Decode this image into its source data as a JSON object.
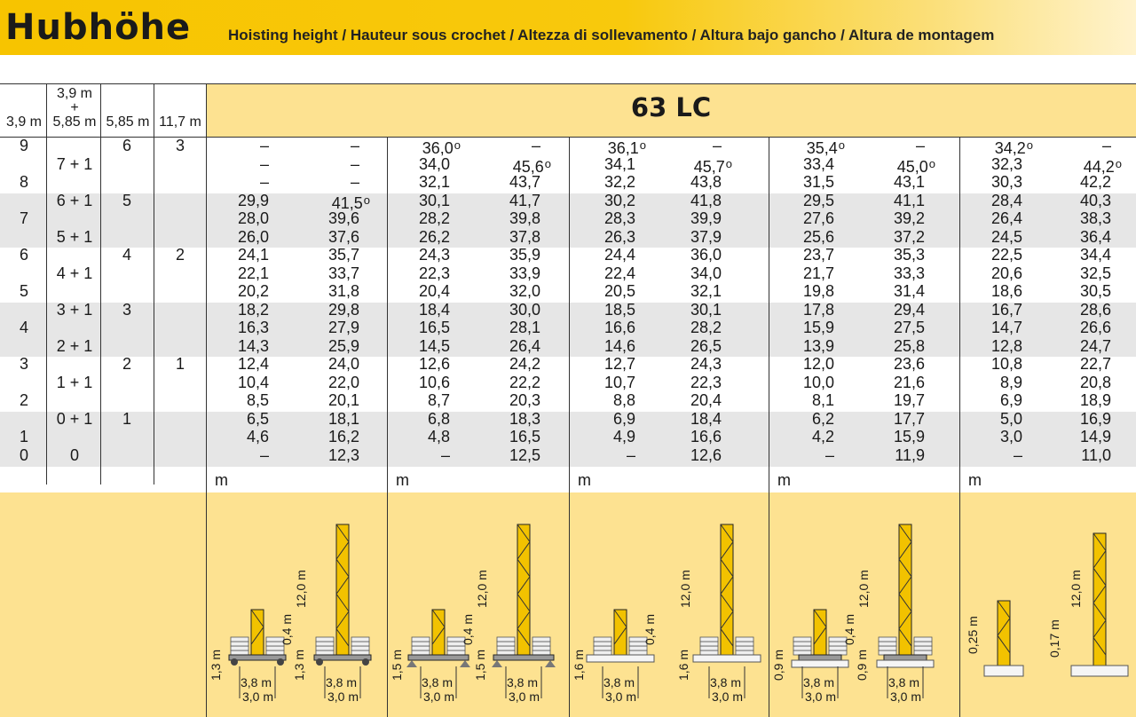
{
  "title": "Hubhöhe",
  "subtitle": "Hoisting height / Hauteur sous crochet / Altezza di sollevamento / Altura bajo gancho / Altura de montagem",
  "model": "63 LC",
  "mast_headers": {
    "h1": "3,9 m",
    "h2_top": "3,9 m",
    "h2_plus": "+",
    "h2_bottom": "5,85 m",
    "h3": "5,85 m",
    "h4": "11,7 m"
  },
  "mast_counts": {
    "col1": [
      "9",
      "",
      "8",
      "",
      "7",
      "",
      "6",
      "",
      "5",
      "",
      "4",
      "",
      "3",
      "",
      "2",
      "",
      "1",
      "0"
    ],
    "col2": [
      "",
      "7 + 1",
      "",
      "6 + 1",
      "",
      "5 + 1",
      "",
      "4 + 1",
      "",
      "3 + 1",
      "",
      "2 + 1",
      "",
      "1 + 1",
      "",
      "0 + 1",
      "",
      "0"
    ],
    "col3": [
      "6",
      "",
      "",
      "5",
      "",
      "",
      "4",
      "",
      "",
      "3",
      "",
      "",
      "2",
      "",
      "",
      "1",
      "",
      ""
    ],
    "col4": [
      "3",
      "",
      "",
      "",
      "",
      "",
      "2",
      "",
      "",
      "",
      "",
      "",
      "1",
      "",
      "",
      "",
      "",
      ""
    ]
  },
  "unit": "m",
  "degree_mark": "o",
  "groups": [
    {
      "a": [
        "–",
        "–",
        "–",
        "29,9",
        "28,0",
        "26,0",
        "24,1",
        "22,1",
        "20,2",
        "18,2",
        "16,3",
        "14,3",
        "12,4",
        "10,4",
        "8,5",
        "6,5",
        "4,6",
        "–"
      ],
      "b": [
        "–",
        "–",
        "–",
        "41,5",
        "39,6",
        "37,6",
        "35,7",
        "33,7",
        "31,8",
        "29,8",
        "27,9",
        "25,9",
        "24,0",
        "22,0",
        "20,1",
        "18,1",
        "16,2",
        "12,3"
      ],
      "a_deg": [],
      "b_deg": [
        3
      ]
    },
    {
      "a": [
        "36,0",
        "34,0",
        "32,1",
        "30,1",
        "28,2",
        "26,2",
        "24,3",
        "22,3",
        "20,4",
        "18,4",
        "16,5",
        "14,5",
        "12,6",
        "10,6",
        "8,7",
        "6,8",
        "4,8",
        "–"
      ],
      "b": [
        "–",
        "45,6",
        "43,7",
        "41,7",
        "39,8",
        "37,8",
        "35,9",
        "33,9",
        "32,0",
        "30,0",
        "28,1",
        "26,4",
        "24,2",
        "22,2",
        "20,3",
        "18,3",
        "16,5",
        "12,5"
      ],
      "a_deg": [
        0
      ],
      "b_deg": [
        1
      ]
    },
    {
      "a": [
        "36,1",
        "34,1",
        "32,2",
        "30,2",
        "28,3",
        "26,3",
        "24,4",
        "22,4",
        "20,5",
        "18,5",
        "16,6",
        "14,6",
        "12,7",
        "10,7",
        "8,8",
        "6,9",
        "4,9",
        "–"
      ],
      "b": [
        "–",
        "45,7",
        "43,8",
        "41,8",
        "39,9",
        "37,9",
        "36,0",
        "34,0",
        "32,1",
        "30,1",
        "28,2",
        "26,5",
        "24,3",
        "22,3",
        "20,4",
        "18,4",
        "16,6",
        "12,6"
      ],
      "a_deg": [
        0
      ],
      "b_deg": [
        1
      ]
    },
    {
      "a": [
        "35,4",
        "33,4",
        "31,5",
        "29,5",
        "27,6",
        "25,6",
        "23,7",
        "21,7",
        "19,8",
        "17,8",
        "15,9",
        "13,9",
        "12,0",
        "10,0",
        "8,1",
        "6,2",
        "4,2",
        "–"
      ],
      "b": [
        "–",
        "45,0",
        "43,1",
        "41,1",
        "39,2",
        "37,2",
        "35,3",
        "33,3",
        "31,4",
        "29,4",
        "27,5",
        "25,8",
        "23,6",
        "21,6",
        "19,7",
        "17,7",
        "15,9",
        "11,9"
      ],
      "a_deg": [
        0
      ],
      "b_deg": [
        1
      ]
    },
    {
      "a": [
        "34,2",
        "32,3",
        "30,3",
        "28,4",
        "26,4",
        "24,5",
        "22,5",
        "20,6",
        "18,6",
        "16,7",
        "14,7",
        "12,8",
        "10,8",
        "8,9",
        "6,9",
        "5,0",
        "3,0",
        "–"
      ],
      "b": [
        "–",
        "44,2",
        "42,2",
        "40,3",
        "38,3",
        "36,4",
        "34,4",
        "32,5",
        "30,5",
        "28,6",
        "26,6",
        "24,7",
        "22,7",
        "20,8",
        "18,9",
        "16,9",
        "14,9",
        "11,0"
      ],
      "a_deg": [
        0
      ],
      "b_deg": [
        1
      ]
    }
  ],
  "diagrams": [
    {
      "small": {
        "height": "1,3 m",
        "ballast": "0,4 m",
        "width_outer": "3,8 m",
        "width_inner": "3,0 m"
      },
      "tall": {
        "height": "1,3 m",
        "mast": "12,0 m",
        "width_outer": "3,8 m",
        "width_inner": "3,0 m"
      }
    },
    {
      "small": {
        "height": "1,5 m",
        "ballast": "0,4 m",
        "width_outer": "3,8 m",
        "width_inner": "3,0 m"
      },
      "tall": {
        "height": "1,5 m",
        "mast": "12,0 m",
        "width_outer": "3,8 m",
        "width_inner": "3,0 m"
      }
    },
    {
      "small": {
        "height": "1,6 m",
        "ballast": "0,4 m",
        "width_outer": "3,8 m",
        "width_inner": "3,0 m"
      },
      "tall": {
        "height": "1,6 m",
        "mast": "12,0 m",
        "width_outer": "3,8 m",
        "width_inner": "3,0 m"
      }
    },
    {
      "small": {
        "height": "0,9 m",
        "ballast": "0,4 m",
        "width_outer": "3,8 m",
        "width_inner": "3,0 m"
      },
      "tall": {
        "height": "0,9 m",
        "mast": "12,0 m",
        "width_outer": "3,8 m",
        "width_inner": "3,0 m"
      }
    },
    {
      "small": {
        "height": "0,25 m"
      },
      "tall": {
        "height": "0,17 m",
        "mast": "12,0 m"
      }
    }
  ]
}
